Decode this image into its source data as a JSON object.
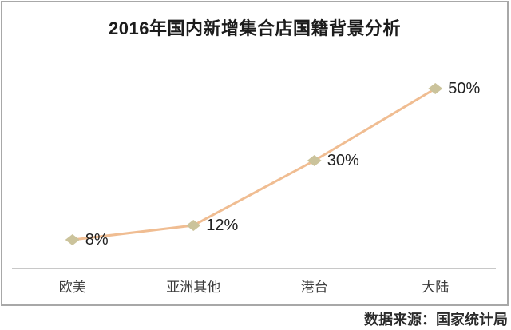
{
  "page": {
    "source_note": "数据来源：国家统计局"
  },
  "chart_data": {
    "type": "line",
    "title": "2016年国内新增集合店国籍背景分析",
    "categories": [
      "欧美",
      "亚洲其他",
      "港台",
      "大陆"
    ],
    "values": [
      8,
      12,
      30,
      50
    ],
    "data_labels": [
      "8%",
      "12%",
      "30%",
      "50%"
    ],
    "xlabel": "",
    "ylabel": "",
    "ylim": [
      0,
      60
    ],
    "grid": false,
    "legend": "none",
    "marker_shape": "diamond",
    "colors": {
      "line": "#f0bd92",
      "marker": "#cbc39b",
      "axis": "#c8c8c8",
      "frame_border": "#a8a8a8",
      "title_text": "#1c1c1c",
      "category_text": "#3d3d3d",
      "label_text": "#222222"
    }
  }
}
